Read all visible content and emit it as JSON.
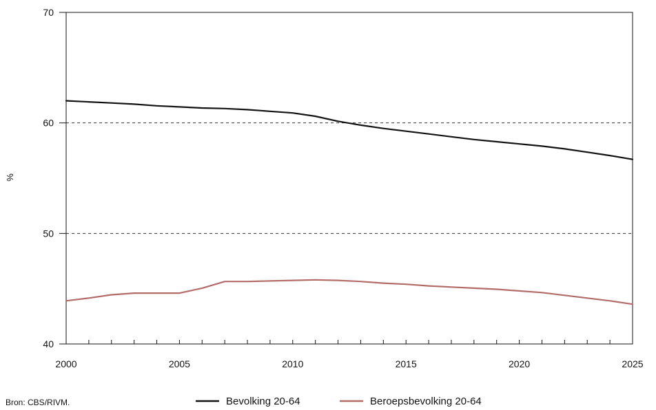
{
  "chart_data": {
    "type": "line",
    "title": "",
    "xlabel": "",
    "ylabel": "%",
    "xlim": [
      2000,
      2025
    ],
    "ylim": [
      40,
      70
    ],
    "x_ticks": [
      2000,
      2005,
      2010,
      2015,
      2020,
      2025
    ],
    "y_ticks": [
      40,
      50,
      60,
      70
    ],
    "dashed_gridlines_at": [
      50,
      60
    ],
    "legend_position": "bottom-center",
    "source": "Bron: CBS/RIVM.",
    "x": [
      2000,
      2001,
      2002,
      2003,
      2004,
      2005,
      2006,
      2007,
      2008,
      2009,
      2010,
      2011,
      2012,
      2013,
      2014,
      2015,
      2016,
      2017,
      2018,
      2019,
      2020,
      2021,
      2022,
      2023,
      2024,
      2025
    ],
    "series": [
      {
        "name": "Bevolking 20-64",
        "color": "#111111",
        "values": [
          62.0,
          61.9,
          61.8,
          61.7,
          61.55,
          61.45,
          61.35,
          61.3,
          61.2,
          61.05,
          60.9,
          60.6,
          60.15,
          59.8,
          59.5,
          59.25,
          59.0,
          58.75,
          58.5,
          58.3,
          58.1,
          57.9,
          57.65,
          57.35,
          57.05,
          56.7
        ]
      },
      {
        "name": "Beroepsbevolking 20-64",
        "color": "#b36b68",
        "values": [
          43.9,
          44.15,
          44.45,
          44.6,
          44.6,
          44.6,
          45.05,
          45.65,
          45.65,
          45.7,
          45.75,
          45.8,
          45.75,
          45.65,
          45.5,
          45.4,
          45.25,
          45.15,
          45.05,
          44.95,
          44.8,
          44.65,
          44.4,
          44.15,
          43.9,
          43.6
        ]
      }
    ]
  }
}
